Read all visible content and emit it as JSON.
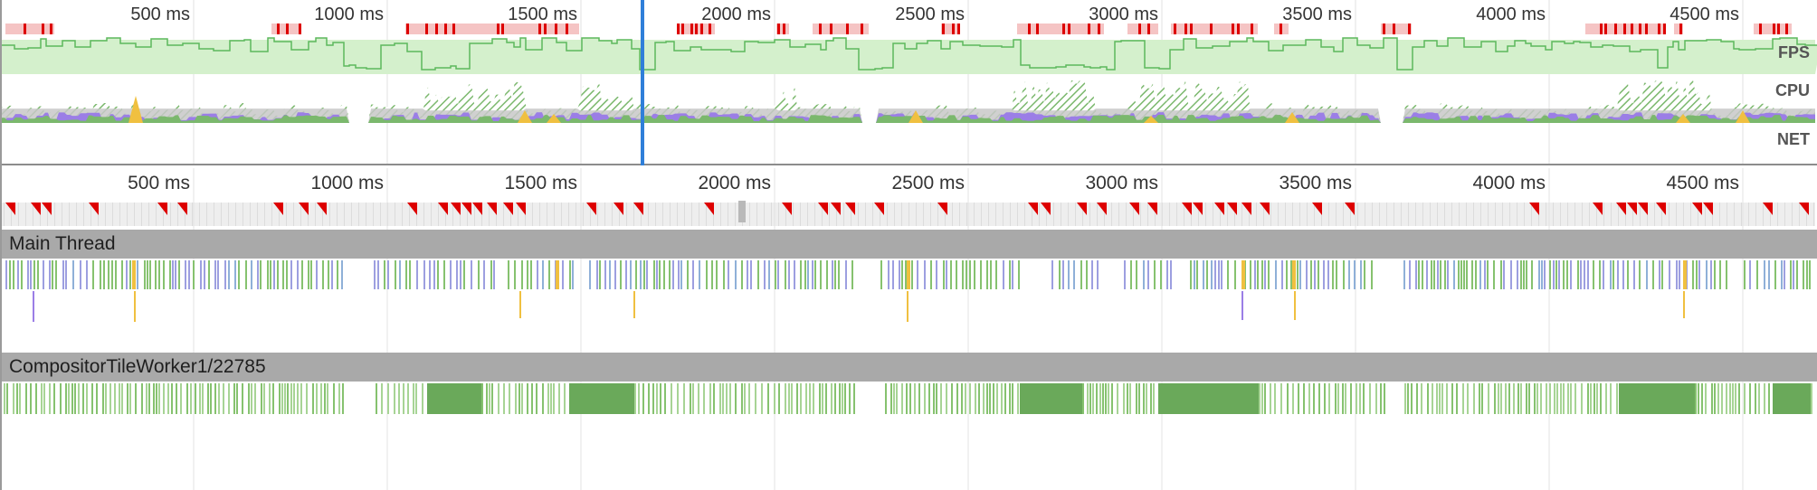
{
  "overview": {
    "tick_labels": [
      "500 ms",
      "1000 ms",
      "1500 ms",
      "2000 ms",
      "2500 ms",
      "3000 ms",
      "3500 ms",
      "4000 ms",
      "4500 ms"
    ],
    "lanes": {
      "fps": "FPS",
      "cpu": "CPU",
      "net": "NET"
    }
  },
  "main_ruler": {
    "tick_labels": [
      "500 ms",
      "1000 ms",
      "1500 ms",
      "2000 ms",
      "2500 ms",
      "3000 ms",
      "3500 ms",
      "4000 ms",
      "4500 ms"
    ]
  },
  "tracks": [
    {
      "title": "Main Thread"
    },
    {
      "title": "CompositorTileWorker1/22785"
    }
  ],
  "colors": {
    "fps_fill": "#d4f0cc",
    "fps_line": "#5cb85c",
    "frame_bad": "#f5c4c4",
    "frame_red": "#dd0000",
    "cpu_gray": "#c8c8c8",
    "cpu_purple": "#9b7ee6",
    "cpu_green": "#7bb86d",
    "cpu_yellow": "#f0c040",
    "selection": "#2f7fd9",
    "header_gray": "#a9a9a9"
  }
}
